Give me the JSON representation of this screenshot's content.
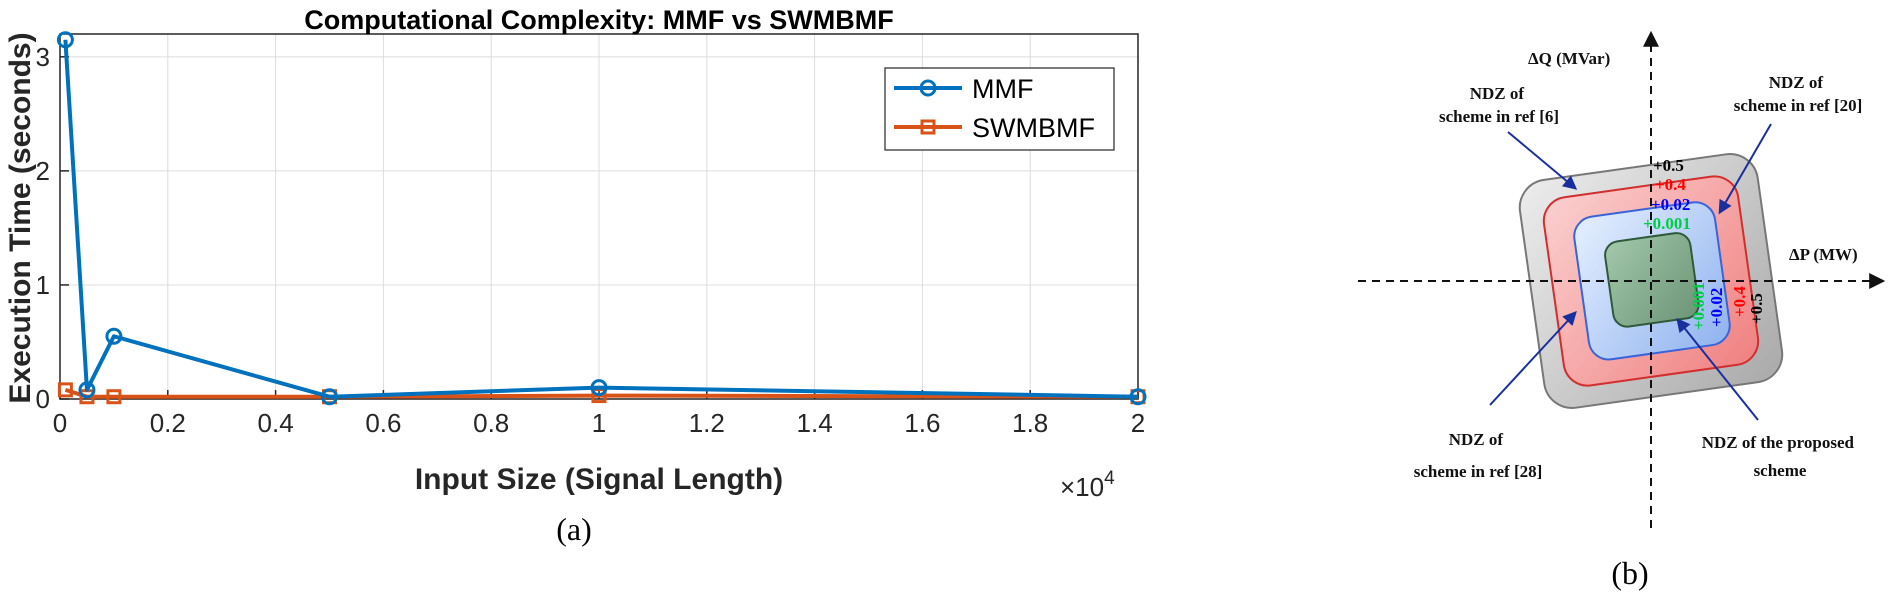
{
  "chart_data": [
    {
      "type": "line",
      "title": "Computational Complexity: MMF vs SWMBMF",
      "xlabel": "Input Size (Signal Length)",
      "ylabel": "Execution Time (seconds)",
      "x_multiplier": "×10",
      "x_multiplier_exp": "4",
      "caption": "(a)",
      "xlim": [
        0,
        20000
      ],
      "ylim": [
        0,
        3.2
      ],
      "x_ticks": [
        0,
        2000,
        4000,
        6000,
        8000,
        10000,
        12000,
        14000,
        16000,
        18000,
        20000
      ],
      "x_tick_labels": [
        "0",
        "0.2",
        "0.4",
        "0.6",
        "0.8",
        "1",
        "1.2",
        "1.4",
        "1.6",
        "1.8",
        "2"
      ],
      "y_ticks": [
        0,
        1,
        2,
        3
      ],
      "y_tick_labels": [
        "0",
        "1",
        "2",
        "3"
      ],
      "grid": true,
      "legend_position": "top-right",
      "x": [
        100,
        500,
        1000,
        5000,
        10000,
        20000
      ],
      "series": [
        {
          "name": "MMF",
          "color": "#0072BD",
          "marker": "circle",
          "values": [
            3.15,
            0.08,
            0.55,
            0.02,
            0.1,
            0.02
          ]
        },
        {
          "name": "SWMBMF",
          "color": "#D95319",
          "marker": "square",
          "values": [
            0.08,
            0.02,
            0.02,
            0.02,
            0.03,
            0.02
          ]
        }
      ]
    },
    {
      "type": "diagram",
      "caption": "(b)",
      "axis_x_label": "ΔP (MW)",
      "axis_y_label": "ΔQ (MVar)",
      "zones": [
        {
          "key": "ref6",
          "value": "+0.5",
          "color": "#000000"
        },
        {
          "key": "ref20",
          "value": "+0.4",
          "color": "#FF0000"
        },
        {
          "key": "ref28",
          "value": "+0.02",
          "color": "#0000FF"
        },
        {
          "key": "proposed",
          "value": "+0.001",
          "color": "#00CC44"
        }
      ],
      "labels": {
        "ref6": [
          "NDZ of",
          "scheme in ref [6]"
        ],
        "ref20": [
          "NDZ of",
          "scheme in ref [20]"
        ],
        "ref28": [
          "NDZ of",
          "scheme in ref [28]"
        ],
        "proposed": [
          "NDZ of the proposed",
          "scheme"
        ]
      }
    }
  ]
}
